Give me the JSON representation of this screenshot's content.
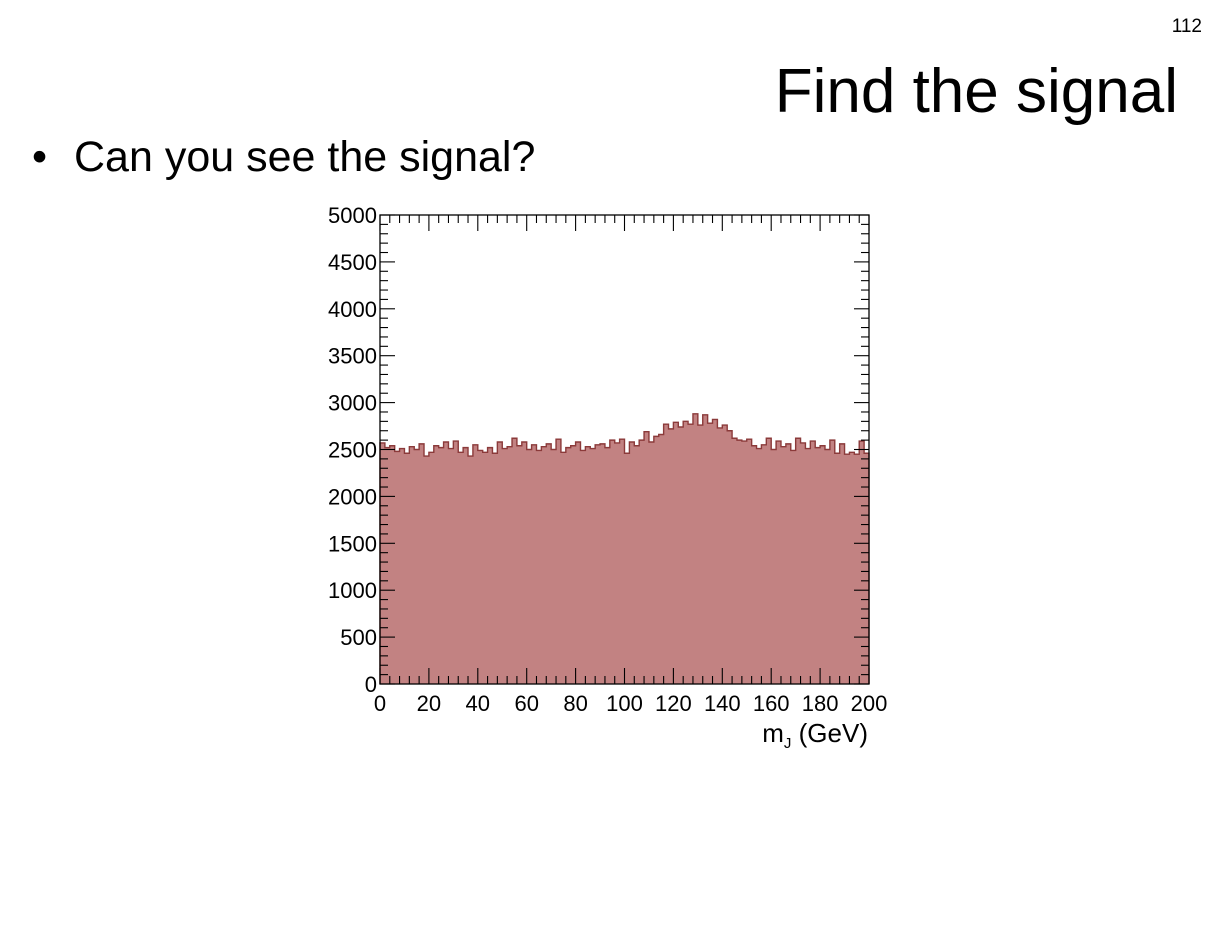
{
  "slide": {
    "page_number": "112",
    "title": "Find the signal",
    "bullet": "Can you see the signal?"
  },
  "chart_data": {
    "type": "bar",
    "histogram": true,
    "title": "",
    "xlabel_main": "m",
    "xlabel_sub": "J",
    "xlabel_unit": " (GeV)",
    "ylabel": "",
    "xlim": [
      0,
      200
    ],
    "ylim": [
      0,
      5000
    ],
    "xticks": [
      0,
      20,
      40,
      60,
      80,
      100,
      120,
      140,
      160,
      180,
      200
    ],
    "xtick_labels": [
      "0",
      "20",
      "40",
      "60",
      "80",
      "100",
      "120",
      "140",
      "160",
      "180",
      "200"
    ],
    "yticks": [
      0,
      500,
      1000,
      1500,
      2000,
      2500,
      3000,
      3500,
      4000,
      4500,
      5000
    ],
    "ytick_labels": [
      "0",
      "500",
      "1000",
      "1500",
      "2000",
      "2500",
      "3000",
      "3500",
      "4000",
      "4500",
      "5000"
    ],
    "grid": false,
    "legend": "none",
    "fill_color": "#c28282",
    "line_color": "#8b3a3a",
    "bin_width": 2,
    "bin_centers": [
      1,
      3,
      5,
      7,
      9,
      11,
      13,
      15,
      17,
      19,
      21,
      23,
      25,
      27,
      29,
      31,
      33,
      35,
      37,
      39,
      41,
      43,
      45,
      47,
      49,
      51,
      53,
      55,
      57,
      59,
      61,
      63,
      65,
      67,
      69,
      71,
      73,
      75,
      77,
      79,
      81,
      83,
      85,
      87,
      89,
      91,
      93,
      95,
      97,
      99,
      101,
      103,
      105,
      107,
      109,
      111,
      113,
      115,
      117,
      119,
      121,
      123,
      125,
      127,
      129,
      131,
      133,
      135,
      137,
      139,
      141,
      143,
      145,
      147,
      149,
      151,
      153,
      155,
      157,
      159,
      161,
      163,
      165,
      167,
      169,
      171,
      173,
      175,
      177,
      179,
      181,
      183,
      185,
      187,
      189,
      191,
      193,
      195,
      197,
      199
    ],
    "values": [
      2570,
      2520,
      2540,
      2480,
      2510,
      2460,
      2530,
      2500,
      2560,
      2430,
      2470,
      2540,
      2520,
      2580,
      2510,
      2590,
      2470,
      2520,
      2430,
      2550,
      2490,
      2470,
      2520,
      2460,
      2580,
      2510,
      2530,
      2620,
      2540,
      2580,
      2500,
      2550,
      2490,
      2530,
      2560,
      2500,
      2610,
      2470,
      2520,
      2540,
      2580,
      2490,
      2530,
      2510,
      2550,
      2560,
      2520,
      2600,
      2570,
      2610,
      2460,
      2580,
      2540,
      2600,
      2690,
      2580,
      2640,
      2660,
      2770,
      2720,
      2790,
      2740,
      2800,
      2770,
      2880,
      2760,
      2870,
      2780,
      2820,
      2730,
      2760,
      2700,
      2620,
      2600,
      2590,
      2610,
      2540,
      2510,
      2550,
      2620,
      2500,
      2590,
      2530,
      2560,
      2490,
      2620,
      2570,
      2510,
      2590,
      2520,
      2540,
      2500,
      2600,
      2460,
      2560,
      2450,
      2470,
      2450,
      2590,
      2460
    ]
  }
}
